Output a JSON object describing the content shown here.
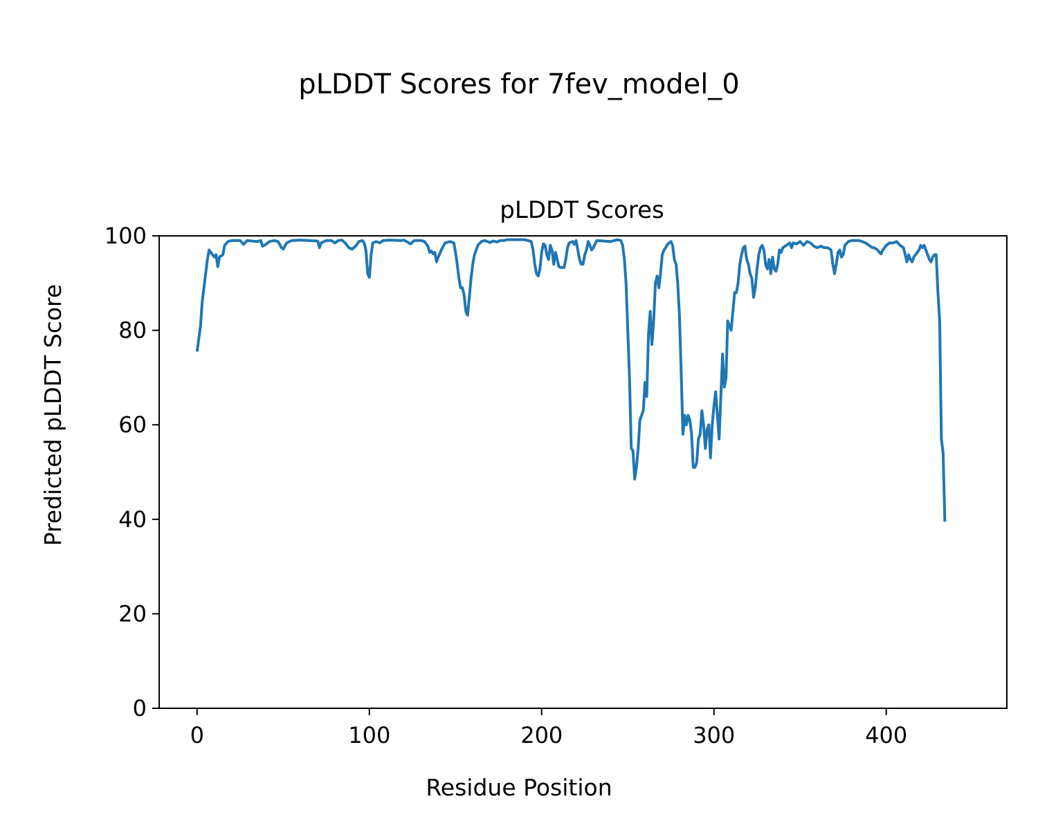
{
  "chart_data": {
    "type": "line",
    "suptitle": "pLDDT Scores for 7fev_model_0",
    "title": "pLDDT Scores",
    "xlabel": "Residue Position",
    "ylabel": "Predicted pLDDT Score",
    "xlim": [
      -22,
      470
    ],
    "ylim": [
      0,
      100
    ],
    "xticks": [
      0,
      100,
      200,
      300,
      400
    ],
    "yticks": [
      0,
      20,
      40,
      60,
      80,
      100
    ],
    "grid": false,
    "line_color": "#1f77b4",
    "series": [
      {
        "points": [
          [
            0,
            75.5
          ],
          [
            2,
            81
          ],
          [
            3,
            86
          ],
          [
            5,
            92
          ],
          [
            6,
            95
          ],
          [
            7,
            97
          ],
          [
            8,
            96.5
          ],
          [
            9,
            96
          ],
          [
            10,
            95.5
          ],
          [
            11,
            96
          ],
          [
            12,
            93.5
          ],
          [
            13,
            95.5
          ],
          [
            15,
            96
          ],
          [
            16,
            98
          ],
          [
            18,
            98.8
          ],
          [
            20,
            99
          ],
          [
            25,
            99
          ],
          [
            27,
            98.2
          ],
          [
            29,
            99
          ],
          [
            35,
            98.8
          ],
          [
            37,
            99
          ],
          [
            38,
            97.8
          ],
          [
            40,
            98.2
          ],
          [
            42,
            98.8
          ],
          [
            45,
            99
          ],
          [
            47,
            98.8
          ],
          [
            49,
            97.5
          ],
          [
            50,
            97.2
          ],
          [
            52,
            98.5
          ],
          [
            55,
            99
          ],
          [
            60,
            99.1
          ],
          [
            70,
            98.9
          ],
          [
            71,
            97.5
          ],
          [
            72,
            98.5
          ],
          [
            75,
            99
          ],
          [
            78,
            99
          ],
          [
            80,
            98.5
          ],
          [
            82,
            99
          ],
          [
            84,
            99.1
          ],
          [
            86,
            98.5
          ],
          [
            88,
            97.5
          ],
          [
            90,
            97.2
          ],
          [
            92,
            97.8
          ],
          [
            94,
            98.8
          ],
          [
            96,
            99
          ],
          [
            97,
            98.5
          ],
          [
            98,
            97
          ],
          [
            99,
            92
          ],
          [
            100,
            91.2
          ],
          [
            101,
            96
          ],
          [
            102,
            98.5
          ],
          [
            104,
            98.8
          ],
          [
            106,
            98.5
          ],
          [
            108,
            99
          ],
          [
            112,
            99.1
          ],
          [
            118,
            99
          ],
          [
            120,
            99.1
          ],
          [
            124,
            98.3
          ],
          [
            126,
            99
          ],
          [
            130,
            99
          ],
          [
            132,
            98.8
          ],
          [
            134,
            97.8
          ],
          [
            135,
            96.5
          ],
          [
            136,
            96.8
          ],
          [
            137,
            96.2
          ],
          [
            138,
            96.5
          ],
          [
            139,
            94.5
          ],
          [
            140,
            95.5
          ],
          [
            142,
            97.2
          ],
          [
            144,
            98.5
          ],
          [
            147,
            98.8
          ],
          [
            149,
            98.5
          ],
          [
            150,
            96.5
          ],
          [
            151,
            94
          ],
          [
            152,
            91
          ],
          [
            153,
            89
          ],
          [
            154,
            89
          ],
          [
            155,
            87.5
          ],
          [
            156,
            84
          ],
          [
            157,
            83.2
          ],
          [
            158,
            87
          ],
          [
            159,
            91
          ],
          [
            160,
            94
          ],
          [
            161,
            96
          ],
          [
            163,
            98
          ],
          [
            165,
            98.8
          ],
          [
            167,
            99
          ],
          [
            170,
            98.6
          ],
          [
            172,
            98.9
          ],
          [
            174,
            98.7
          ],
          [
            176,
            99
          ],
          [
            178,
            99
          ],
          [
            180,
            99.2
          ],
          [
            190,
            99.2
          ],
          [
            194,
            98.8
          ],
          [
            195,
            97
          ],
          [
            196,
            94
          ],
          [
            197,
            92
          ],
          [
            198,
            91.5
          ],
          [
            199,
            93
          ],
          [
            200,
            96.5
          ],
          [
            201,
            98.3
          ],
          [
            202,
            98
          ],
          [
            203,
            96
          ],
          [
            204,
            95
          ],
          [
            205,
            98
          ],
          [
            206,
            97
          ],
          [
            207,
            94
          ],
          [
            208,
            96.5
          ],
          [
            209,
            95
          ],
          [
            210,
            93.5
          ],
          [
            211,
            93.3
          ],
          [
            212,
            93.3
          ],
          [
            213,
            93.3
          ],
          [
            214,
            95
          ],
          [
            215,
            97.5
          ],
          [
            216,
            98.5
          ],
          [
            218,
            98.8
          ],
          [
            219,
            98.2
          ],
          [
            220,
            99
          ],
          [
            221,
            97
          ],
          [
            222,
            95
          ],
          [
            223,
            94
          ],
          [
            224,
            94
          ],
          [
            225,
            96
          ],
          [
            226,
            97
          ],
          [
            227,
            98.8
          ],
          [
            228,
            98
          ],
          [
            229,
            97
          ],
          [
            230,
            97.5
          ],
          [
            232,
            99
          ],
          [
            240,
            98.8
          ],
          [
            244,
            99.2
          ],
          [
            246,
            99
          ],
          [
            247,
            98
          ],
          [
            248,
            95
          ],
          [
            249,
            90
          ],
          [
            250,
            80
          ],
          [
            251,
            70
          ],
          [
            252,
            55
          ],
          [
            253,
            54.5
          ],
          [
            254,
            48.5
          ],
          [
            255,
            51
          ],
          [
            256,
            55
          ],
          [
            257,
            61
          ],
          [
            258,
            62
          ],
          [
            259,
            63
          ],
          [
            260,
            69
          ],
          [
            261,
            66
          ],
          [
            262,
            79
          ],
          [
            263,
            84
          ],
          [
            264,
            77
          ],
          [
            265,
            82
          ],
          [
            266,
            90
          ],
          [
            267,
            91.5
          ],
          [
            268,
            89
          ],
          [
            269,
            92
          ],
          [
            270,
            96
          ],
          [
            271,
            97
          ],
          [
            272,
            97.5
          ],
          [
            273,
            98.2
          ],
          [
            275,
            98.8
          ],
          [
            276,
            98
          ],
          [
            277,
            95
          ],
          [
            278,
            94
          ],
          [
            279,
            90
          ],
          [
            280,
            83
          ],
          [
            281,
            71
          ],
          [
            282,
            58
          ],
          [
            283,
            62
          ],
          [
            284,
            60
          ],
          [
            285,
            62
          ],
          [
            286,
            61
          ],
          [
            287,
            58
          ],
          [
            288,
            51
          ],
          [
            289,
            51
          ],
          [
            290,
            52
          ],
          [
            291,
            57
          ],
          [
            292,
            58
          ],
          [
            293,
            63
          ],
          [
            294,
            60
          ],
          [
            295,
            55
          ],
          [
            296,
            59
          ],
          [
            297,
            60
          ],
          [
            298,
            53
          ],
          [
            299,
            60
          ],
          [
            300,
            64
          ],
          [
            301,
            67
          ],
          [
            302,
            62
          ],
          [
            303,
            57
          ],
          [
            304,
            66
          ],
          [
            305,
            75
          ],
          [
            306,
            68
          ],
          [
            307,
            70
          ],
          [
            308,
            82
          ],
          [
            309,
            81
          ],
          [
            310,
            80
          ],
          [
            311,
            84
          ],
          [
            312,
            88
          ],
          [
            313,
            88
          ],
          [
            314,
            90
          ],
          [
            315,
            94
          ],
          [
            316,
            96
          ],
          [
            317,
            97.5
          ],
          [
            318,
            97.8
          ],
          [
            319,
            95
          ],
          [
            320,
            94
          ],
          [
            321,
            92
          ],
          [
            322,
            91
          ],
          [
            323,
            87
          ],
          [
            324,
            89
          ],
          [
            325,
            93
          ],
          [
            326,
            96
          ],
          [
            327,
            97.5
          ],
          [
            328,
            98
          ],
          [
            329,
            97
          ],
          [
            330,
            94
          ],
          [
            331,
            93
          ],
          [
            332,
            95
          ],
          [
            333,
            92
          ],
          [
            334,
            95.5
          ],
          [
            335,
            93
          ],
          [
            336,
            92.5
          ],
          [
            337,
            94
          ],
          [
            338,
            97
          ],
          [
            339,
            96.5
          ],
          [
            340,
            97.5
          ],
          [
            342,
            98
          ],
          [
            344,
            98.5
          ],
          [
            345,
            97.5
          ],
          [
            346,
            98.5
          ],
          [
            348,
            98.3
          ],
          [
            350,
            98.8
          ],
          [
            352,
            98
          ],
          [
            354,
            98.8
          ],
          [
            356,
            98.5
          ],
          [
            358,
            97.8
          ],
          [
            360,
            97.5
          ],
          [
            362,
            97.8
          ],
          [
            364,
            97.5
          ],
          [
            366,
            97.5
          ],
          [
            368,
            97
          ],
          [
            369,
            94
          ],
          [
            370,
            92
          ],
          [
            371,
            94
          ],
          [
            372,
            96.5
          ],
          [
            373,
            97
          ],
          [
            374,
            95.5
          ],
          [
            375,
            96
          ],
          [
            376,
            98
          ],
          [
            378,
            98.8
          ],
          [
            380,
            99
          ],
          [
            384,
            99
          ],
          [
            386,
            98.8
          ],
          [
            388,
            98.5
          ],
          [
            390,
            98
          ],
          [
            392,
            97.5
          ],
          [
            393,
            97.5
          ],
          [
            395,
            97
          ],
          [
            396,
            96.5
          ],
          [
            397,
            96.2
          ],
          [
            398,
            97
          ],
          [
            400,
            98
          ],
          [
            402,
            98.5
          ],
          [
            404,
            98.5
          ],
          [
            406,
            98.8
          ],
          [
            408,
            98
          ],
          [
            410,
            97.5
          ],
          [
            411,
            96
          ],
          [
            412,
            94.5
          ],
          [
            413,
            96
          ],
          [
            414,
            95
          ],
          [
            415,
            94.5
          ],
          [
            416,
            95.5
          ],
          [
            418,
            96.5
          ],
          [
            419,
            97
          ],
          [
            420,
            98
          ],
          [
            421,
            97.5
          ],
          [
            422,
            98
          ],
          [
            423,
            97
          ],
          [
            424,
            96
          ],
          [
            425,
            95
          ],
          [
            426,
            94.5
          ],
          [
            427,
            95.5
          ],
          [
            428,
            96
          ],
          [
            429,
            96
          ],
          [
            430,
            88
          ],
          [
            431,
            82
          ],
          [
            432,
            57
          ],
          [
            433,
            54
          ],
          [
            434,
            39.5
          ]
        ]
      }
    ]
  }
}
